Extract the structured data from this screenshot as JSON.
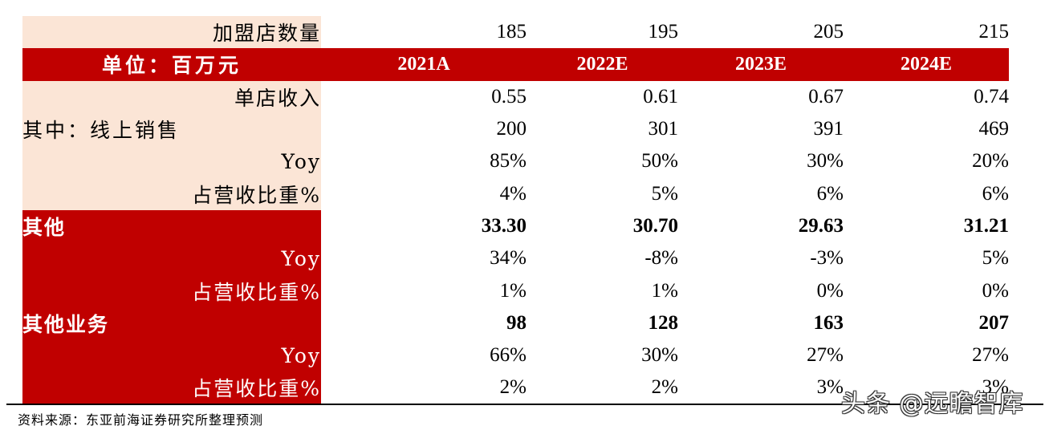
{
  "table": {
    "header": {
      "label": "单位：百万元",
      "years": [
        "2021A",
        "2022E",
        "2023E",
        "2024E"
      ]
    },
    "top_row": {
      "label": "加盟店数量",
      "values": [
        "185",
        "195",
        "205",
        "215"
      ]
    },
    "rows": [
      {
        "label": "单店收入",
        "values": [
          "0.55",
          "0.61",
          "0.67",
          "0.74"
        ]
      },
      {
        "label": "其中：线上销售",
        "values": [
          "200",
          "301",
          "391",
          "469"
        ]
      },
      {
        "label": "Yoy",
        "values": [
          "85%",
          "50%",
          "30%",
          "20%"
        ]
      },
      {
        "label": "占营收比重%",
        "values": [
          "4%",
          "5%",
          "6%",
          "6%"
        ]
      },
      {
        "label": "其他",
        "values": [
          "33.30",
          "30.70",
          "29.63",
          "31.21"
        ]
      },
      {
        "label": "Yoy",
        "values": [
          "34%",
          "-8%",
          "-3%",
          "5%"
        ]
      },
      {
        "label": "占营收比重%",
        "values": [
          "1%",
          "1%",
          "0%",
          "0%"
        ]
      },
      {
        "label": "其他业务",
        "values": [
          "98",
          "128",
          "163",
          "207"
        ]
      },
      {
        "label": "Yoy",
        "values": [
          "66%",
          "30%",
          "27%",
          "27%"
        ]
      },
      {
        "label": "占营收比重%",
        "values": [
          "2%",
          "2%",
          "3%",
          "3%"
        ]
      }
    ]
  },
  "source": "资料来源：东亚前海证券研究所整理预测",
  "watermark": "头条 @远瞻智库",
  "colors": {
    "header_red": "#c00000",
    "beige": "#fbe5d6"
  }
}
